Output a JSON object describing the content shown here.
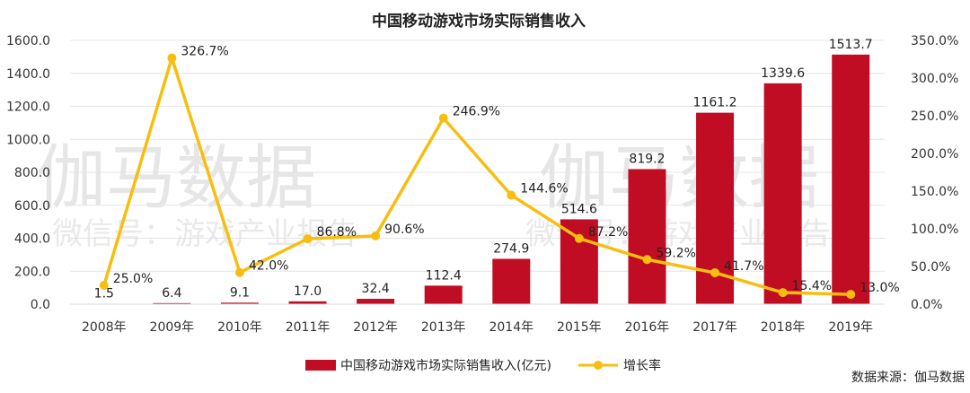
{
  "chart_data": {
    "type": "bar+line",
    "title": "中国移动游戏市场实际销售收入",
    "categories": [
      "2008年",
      "2009年",
      "2010年",
      "2011年",
      "2012年",
      "2013年",
      "2014年",
      "2015年",
      "2016年",
      "2017年",
      "2018年",
      "2019年"
    ],
    "series": [
      {
        "name": "中国移动游戏市场实际销售收入(亿元)",
        "type": "bar",
        "axis": "left",
        "values": [
          1.5,
          6.4,
          9.1,
          17.0,
          32.4,
          112.4,
          274.9,
          514.6,
          819.2,
          1161.2,
          1339.6,
          1513.7
        ],
        "labels": [
          "1.5",
          "6.4",
          "9.1",
          "17.0",
          "32.4",
          "112.4",
          "274.9",
          "514.6",
          "819.2",
          "1161.2",
          "1339.6",
          "1513.7"
        ],
        "color": "#c00d23"
      },
      {
        "name": "增长率",
        "type": "line",
        "axis": "right",
        "values": [
          25.0,
          326.7,
          42.0,
          86.8,
          90.6,
          246.9,
          144.6,
          87.2,
          59.2,
          41.7,
          15.4,
          13.0
        ],
        "labels": [
          "25.0%",
          "326.7%",
          "42.0%",
          "86.8%",
          "90.6%",
          "246.9%",
          "144.6%",
          "87.2%",
          "59.2%",
          "41.7%",
          "15.4%",
          "13.0%"
        ],
        "color": "#f7be10"
      }
    ],
    "y_left": {
      "ylim": [
        0,
        1600
      ],
      "ticks": [
        "0.0",
        "200.0",
        "400.0",
        "600.0",
        "800.0",
        "1000.0",
        "1200.0",
        "1400.0",
        "1600.0"
      ]
    },
    "y_right": {
      "ylim": [
        0,
        350
      ],
      "ticks": [
        "0.0%",
        "50.0%",
        "100.0%",
        "150.0%",
        "200.0%",
        "250.0%",
        "300.0%",
        "350.0%"
      ]
    },
    "grid": true,
    "legend_position": "bottom-center"
  },
  "watermark": {
    "big": [
      "伽马数据",
      "伽马数据"
    ],
    "small": [
      "微信号：游戏产业报告",
      "微信号：游戏产业报告"
    ]
  },
  "source": "数据来源：伽马数据"
}
